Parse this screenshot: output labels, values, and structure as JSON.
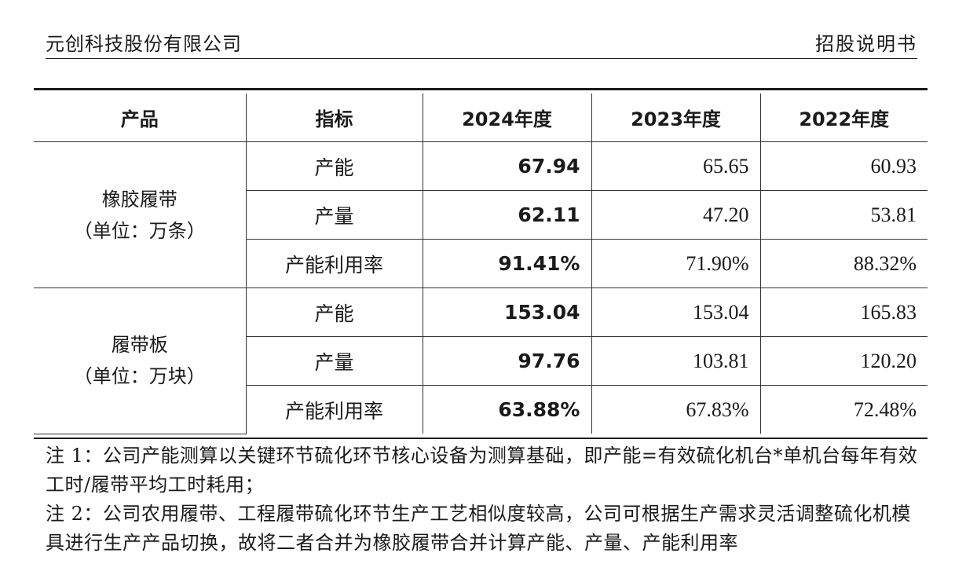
{
  "header": {
    "company": "元创科技股份有限公司",
    "doc_type": "招股说明书"
  },
  "table": {
    "columns": [
      "产品",
      "指标",
      "2024年度",
      "2023年度",
      "2022年度"
    ],
    "groups": [
      {
        "product": "橡胶履带",
        "unit": "（单位：万条）",
        "rows": [
          {
            "indicator": "产能",
            "y2024": "67.94",
            "y2023": "65.65",
            "y2022": "60.93"
          },
          {
            "indicator": "产量",
            "y2024": "62.11",
            "y2023": "47.20",
            "y2022": "53.81"
          },
          {
            "indicator": "产能利用率",
            "y2024": "91.41%",
            "y2023": "71.90%",
            "y2022": "88.32%"
          }
        ]
      },
      {
        "product": "履带板",
        "unit": "（单位：万块）",
        "rows": [
          {
            "indicator": "产能",
            "y2024": "153.04",
            "y2023": "153.04",
            "y2022": "165.83"
          },
          {
            "indicator": "产量",
            "y2024": "97.76",
            "y2023": "103.81",
            "y2022": "120.20"
          },
          {
            "indicator": "产能利用率",
            "y2024": "63.88%",
            "y2023": "67.83%",
            "y2022": "72.48%"
          }
        ]
      }
    ]
  },
  "notes": [
    "注 1：公司产能测算以关键环节硫化环节核心设备为测算基础，即产能=有效硫化机台*单机台每年有效工时/履带平均工时耗用；",
    "注 2：公司农用履带、工程履带硫化环节生产工艺相似度较高，公司可根据生产需求灵活调整硫化机模具进行生产产品切换，故将二者合并为橡胶履带合并计算产能、产量、产能利用率"
  ]
}
